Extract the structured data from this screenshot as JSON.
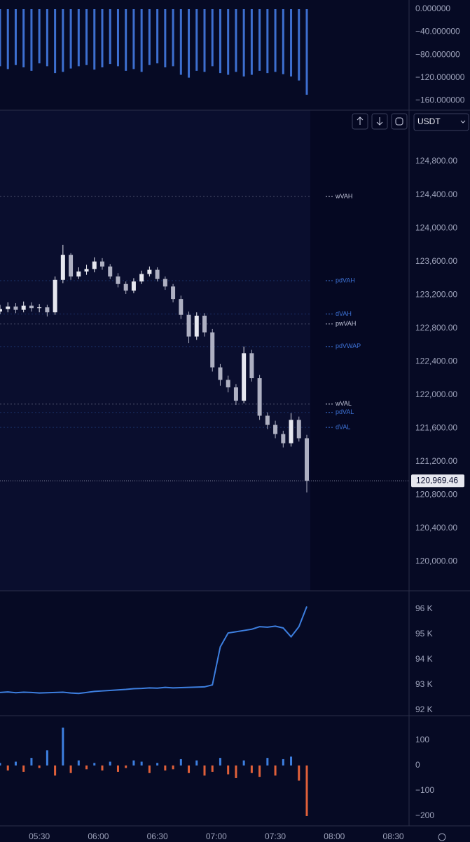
{
  "toolbar": {
    "currency": "USDT"
  },
  "chart_data": [
    {
      "type": "bar",
      "color": "#3d6fd0",
      "x": [
        "05:10",
        "05:14",
        "05:18",
        "05:22",
        "05:26",
        "05:30",
        "05:34",
        "05:38",
        "05:42",
        "05:46",
        "05:50",
        "05:54",
        "05:58",
        "06:02",
        "06:06",
        "06:10",
        "06:14",
        "06:18",
        "06:22",
        "06:26",
        "06:30",
        "06:34",
        "06:38",
        "06:42",
        "06:46",
        "06:50",
        "06:54",
        "06:58",
        "07:02",
        "07:06",
        "07:10",
        "07:14",
        "07:18",
        "07:22",
        "07:26",
        "07:30",
        "07:34",
        "07:38",
        "07:42",
        "07:46"
      ],
      "values": [
        -100,
        -105,
        -98,
        -102,
        -108,
        -95,
        -100,
        -112,
        -110,
        -104,
        -100,
        -98,
        -106,
        -102,
        -96,
        -100,
        -108,
        -105,
        -110,
        -98,
        -95,
        -102,
        -100,
        -115,
        -120,
        -108,
        -110,
        -100,
        -112,
        -115,
        -110,
        -118,
        -115,
        -108,
        -112,
        -110,
        -114,
        -118,
        -125,
        -150
      ],
      "xlim": [
        "05:10",
        "08:38"
      ],
      "ylim": [
        -177,
        16
      ],
      "yticks": [
        {
          "value": 0,
          "label": "0.000000"
        },
        {
          "value": -40,
          "label": "−40.000000"
        },
        {
          "value": -80,
          "label": "−80.000000"
        },
        {
          "value": -120,
          "label": "−120.000000"
        },
        {
          "value": -160,
          "label": "−160.000000"
        }
      ]
    },
    {
      "type": "candlestick",
      "up_color": "#e6e7ef",
      "down_color": "#aeb0c2",
      "x": [
        "05:10",
        "05:14",
        "05:18",
        "05:22",
        "05:26",
        "05:30",
        "05:34",
        "05:38",
        "05:42",
        "05:46",
        "05:50",
        "05:54",
        "05:58",
        "06:02",
        "06:06",
        "06:10",
        "06:14",
        "06:18",
        "06:22",
        "06:26",
        "06:30",
        "06:34",
        "06:38",
        "06:42",
        "06:46",
        "06:50",
        "06:54",
        "06:58",
        "07:02",
        "07:06",
        "07:10",
        "07:14",
        "07:18",
        "07:22",
        "07:26",
        "07:30",
        "07:34",
        "07:38",
        "07:42",
        "07:46"
      ],
      "open": [
        123000,
        123030,
        123060,
        123020,
        123070,
        123040,
        123050,
        122990,
        123380,
        123680,
        123420,
        123480,
        123510,
        123600,
        123540,
        123420,
        123330,
        123250,
        123360,
        123450,
        123500,
        123390,
        123300,
        123150,
        122960,
        122700,
        122950,
        122750,
        122330,
        122180,
        122090,
        121930,
        122500,
        122200,
        121750,
        121640,
        121530,
        121420,
        121700,
        121480
      ],
      "high": [
        123080,
        123110,
        123100,
        123120,
        123110,
        123090,
        123080,
        123420,
        123800,
        123700,
        123530,
        123560,
        123650,
        123640,
        123570,
        123460,
        123360,
        123400,
        123490,
        123540,
        123530,
        123420,
        123330,
        123190,
        123000,
        122990,
        122980,
        122790,
        122370,
        122230,
        122130,
        122580,
        122540,
        122240,
        121790,
        121690,
        121570,
        121780,
        121740,
        121520
      ],
      "low": [
        122970,
        122990,
        122980,
        122990,
        123000,
        122990,
        122940,
        122960,
        123340,
        123380,
        123390,
        123440,
        123470,
        123500,
        123390,
        123290,
        123210,
        123220,
        123330,
        123420,
        123360,
        123260,
        123110,
        122910,
        122620,
        122660,
        122700,
        122280,
        122110,
        122030,
        121880,
        121900,
        122160,
        121700,
        121590,
        121480,
        121370,
        121380,
        121440,
        120830
      ],
      "close": [
        123030,
        123060,
        123020,
        123070,
        123040,
        123050,
        122990,
        123380,
        123680,
        123420,
        123480,
        123510,
        123600,
        123540,
        123420,
        123330,
        123250,
        123360,
        123450,
        123500,
        123390,
        123300,
        123150,
        122960,
        122700,
        122950,
        122750,
        122330,
        122180,
        122090,
        121930,
        122500,
        122200,
        121750,
        121640,
        121530,
        121420,
        121700,
        121480,
        120969.46
      ],
      "last_price": {
        "value": 120969.46,
        "label": "120,969.46"
      },
      "levels": [
        {
          "name": "wVAH",
          "value": 124380,
          "color": "#c3c6da"
        },
        {
          "name": "pdVAH",
          "value": 123370,
          "color": "#3d72d6"
        },
        {
          "name": "dVAH",
          "value": 122970,
          "color": "#3d72d6"
        },
        {
          "name": "pwVAH",
          "value": 122850,
          "color": "#c3c6da"
        },
        {
          "name": "pdVWAP",
          "value": 122580,
          "color": "#3d72d6"
        },
        {
          "name": "wVAL",
          "value": 121890,
          "color": "#c3c6da"
        },
        {
          "name": "pdVAL",
          "value": 121790,
          "color": "#3d72d6"
        },
        {
          "name": "dVAL",
          "value": 121610,
          "color": "#3d72d6"
        }
      ],
      "xlim": [
        "05:10",
        "08:38"
      ],
      "ylim": [
        119650,
        125415
      ],
      "yticks": [
        {
          "value": 120000,
          "label": "120,000.00"
        },
        {
          "value": 120400,
          "label": "120,400.00"
        },
        {
          "value": 120800,
          "label": "120,800.00"
        },
        {
          "value": 121200,
          "label": "121,200.00"
        },
        {
          "value": 121600,
          "label": "121,600.00"
        },
        {
          "value": 122000,
          "label": "122,000.00"
        },
        {
          "value": 122400,
          "label": "122,400.00"
        },
        {
          "value": 122800,
          "label": "122,800.00"
        },
        {
          "value": 123200,
          "label": "123,200.00"
        },
        {
          "value": 123600,
          "label": "123,600.00"
        },
        {
          "value": 124000,
          "label": "124,000.00"
        },
        {
          "value": 124400,
          "label": "124,400.00"
        },
        {
          "value": 124800,
          "label": "124,800.00"
        }
      ]
    },
    {
      "type": "line",
      "color": "#3d7fe0",
      "x": [
        "05:10",
        "05:14",
        "05:18",
        "05:22",
        "05:26",
        "05:30",
        "05:34",
        "05:38",
        "05:42",
        "05:46",
        "05:50",
        "05:54",
        "05:58",
        "06:02",
        "06:06",
        "06:10",
        "06:14",
        "06:18",
        "06:22",
        "06:26",
        "06:30",
        "06:34",
        "06:38",
        "06:42",
        "06:46",
        "06:50",
        "06:54",
        "06:58",
        "07:02",
        "07:06",
        "07:10",
        "07:14",
        "07:18",
        "07:22",
        "07:26",
        "07:30",
        "07:34",
        "07:38",
        "07:42",
        "07:46"
      ],
      "values": [
        92700,
        92720,
        92690,
        92710,
        92700,
        92680,
        92690,
        92700,
        92710,
        92680,
        92660,
        92700,
        92740,
        92760,
        92780,
        92800,
        92820,
        92850,
        92860,
        92880,
        92870,
        92900,
        92880,
        92890,
        92900,
        92910,
        92920,
        93000,
        94500,
        95050,
        95100,
        95150,
        95200,
        95300,
        95280,
        95320,
        95250,
        94900,
        95300,
        96100
      ],
      "xlim": [
        "05:10",
        "08:38"
      ],
      "ylim": [
        91780,
        96720
      ],
      "yticks": [
        {
          "value": 92000,
          "label": "92 K"
        },
        {
          "value": 93000,
          "label": "93 K"
        },
        {
          "value": 94000,
          "label": "94 K"
        },
        {
          "value": 95000,
          "label": "95 K"
        },
        {
          "value": 96000,
          "label": "96 K"
        }
      ]
    },
    {
      "type": "delta",
      "pos_color": "#3d7fe0",
      "neg_color": "#e0603a",
      "x": [
        "05:10",
        "05:14",
        "05:18",
        "05:22",
        "05:26",
        "05:30",
        "05:34",
        "05:38",
        "05:42",
        "05:46",
        "05:50",
        "05:54",
        "05:58",
        "06:02",
        "06:06",
        "06:10",
        "06:14",
        "06:18",
        "06:22",
        "06:26",
        "06:30",
        "06:34",
        "06:38",
        "06:42",
        "06:46",
        "06:50",
        "06:54",
        "06:58",
        "07:02",
        "07:06",
        "07:10",
        "07:14",
        "07:18",
        "07:22",
        "07:26",
        "07:30",
        "07:34",
        "07:38",
        "07:42",
        "07:46"
      ],
      "values": [
        10,
        -20,
        15,
        -25,
        30,
        -10,
        60,
        -40,
        150,
        -30,
        20,
        -15,
        10,
        -20,
        15,
        -25,
        -10,
        20,
        15,
        -30,
        10,
        -20,
        -15,
        25,
        -30,
        20,
        -40,
        -25,
        30,
        -35,
        -50,
        20,
        -30,
        -45,
        30,
        -40,
        25,
        35,
        -60,
        -200
      ],
      "xlim": [
        "05:10",
        "08:38"
      ],
      "ylim": [
        -239,
        197
      ],
      "yticks": [
        100,
        0,
        {
          "value": -100,
          "label": "−100"
        },
        {
          "value": -200,
          "label": "−200"
        }
      ],
      "xticks": [
        "05:30",
        "06:00",
        "06:30",
        "07:00",
        "07:30",
        "08:00",
        "08:30"
      ]
    }
  ]
}
